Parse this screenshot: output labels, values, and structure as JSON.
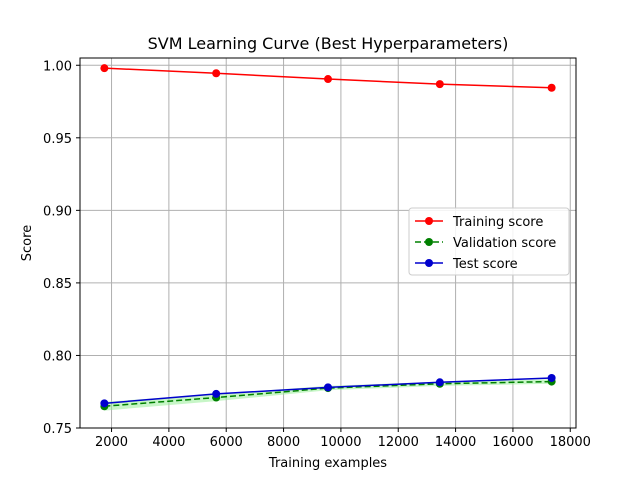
{
  "chart_data": {
    "type": "line",
    "title": "SVM Learning Curve (Best Hyperparameters)",
    "xlabel": "Training examples",
    "ylabel": "Score",
    "x": [
      1750,
      5650,
      9550,
      13450,
      17350
    ],
    "xlim": [
      900,
      18200
    ],
    "ylim": [
      0.75,
      1.005
    ],
    "xticks": [
      2000,
      4000,
      6000,
      8000,
      10000,
      12000,
      14000,
      16000,
      18000
    ],
    "yticks": [
      0.75,
      0.8,
      0.85,
      0.9,
      0.95,
      1.0
    ],
    "xtick_labels": [
      "2000",
      "4000",
      "6000",
      "8000",
      "10000",
      "12000",
      "14000",
      "16000",
      "18000"
    ],
    "ytick_labels": [
      "0.75",
      "0.80",
      "0.85",
      "0.90",
      "0.95",
      "1.00"
    ],
    "grid": true,
    "legend_position": "center-right",
    "series": [
      {
        "name": "Training score",
        "values": [
          0.998,
          0.9945,
          0.9905,
          0.987,
          0.9845
        ],
        "color": "#ff0000",
        "linestyle": "solid",
        "marker": "circle"
      },
      {
        "name": "Validation score",
        "values": [
          0.765,
          0.771,
          0.7775,
          0.7805,
          0.782
        ],
        "color": "#008000",
        "linestyle": "dashed",
        "marker": "circle",
        "band_lower": [
          0.762,
          0.7685,
          0.776,
          0.779,
          0.7805
        ],
        "band_upper": [
          0.768,
          0.7735,
          0.779,
          0.782,
          0.7835
        ],
        "band_color": "#90ee90"
      },
      {
        "name": "Test score",
        "values": [
          0.767,
          0.7735,
          0.778,
          0.7815,
          0.7845
        ],
        "color": "#0000cd",
        "linestyle": "solid",
        "marker": "circle"
      }
    ]
  }
}
